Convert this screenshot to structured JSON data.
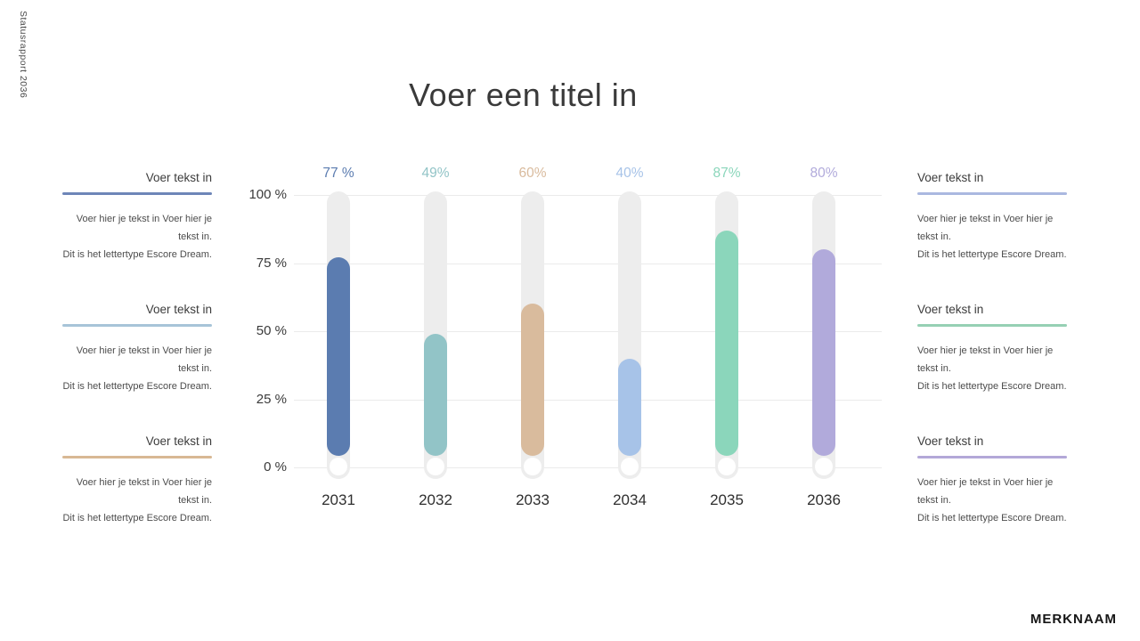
{
  "meta": {
    "side_label": "Statusrapport 2036",
    "brand": "MERKNAAM"
  },
  "title": "Voer een titel in",
  "text_blocks": {
    "left": [
      {
        "heading": "Voer tekst in",
        "line_color": "#6e86b8",
        "body": "Voer hier je tekst in Voer hier je tekst in.",
        "footnote": "Dit is het lettertype Escore Dream."
      },
      {
        "heading": "Voer tekst in",
        "line_color": "#a7c4d8",
        "body": "Voer hier je tekst in Voer hier je tekst in.",
        "footnote": "Dit is het lettertype Escore Dream."
      },
      {
        "heading": "Voer tekst in",
        "line_color": "#d8b894",
        "body": "Voer hier je tekst in Voer hier je tekst in.",
        "footnote": "Dit is het lettertype Escore Dream."
      }
    ],
    "right": [
      {
        "heading": "Voer tekst in",
        "line_color": "#aab8e0",
        "body": "Voer hier je tekst in Voer hier je tekst in.",
        "footnote": "Dit is het lettertype Escore Dream."
      },
      {
        "heading": "Voer tekst in",
        "line_color": "#96d0b4",
        "body": "Voer hier je tekst in Voer hier je tekst in.",
        "footnote": "Dit is het lettertype Escore Dream."
      },
      {
        "heading": "Voer tekst in",
        "line_color": "#b3a8d8",
        "body": "Voer hier je tekst in Voer hier je tekst in.",
        "footnote": "Dit is het lettertype Escore Dream."
      }
    ]
  },
  "chart_data": {
    "type": "bar",
    "title": "Voer een titel in",
    "categories": [
      "2031",
      "2032",
      "2033",
      "2034",
      "2035",
      "2036"
    ],
    "values": [
      77,
      49,
      60,
      40,
      87,
      80
    ],
    "value_labels": [
      "77 %",
      "49%",
      "60%",
      "40%",
      "87%",
      "80%"
    ],
    "bar_colors": [
      "#5b7cb0",
      "#92c4c7",
      "#d9bb9d",
      "#a7c3e8",
      "#8bd6bb",
      "#b1aadb"
    ],
    "track_color": "#ededed",
    "y_ticks": [
      {
        "label": "0 %",
        "value": 0
      },
      {
        "label": "25 %",
        "value": 25
      },
      {
        "label": "50 %",
        "value": 50
      },
      {
        "label": "75 %",
        "value": 75
      },
      {
        "label": "100 %",
        "value": 100
      }
    ],
    "ylim": [
      0,
      100
    ],
    "grid": true,
    "legend": "none"
  }
}
